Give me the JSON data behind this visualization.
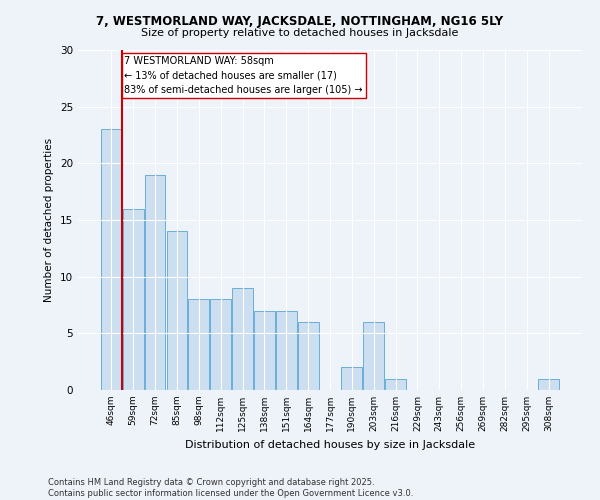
{
  "title1": "7, WESTMORLAND WAY, JACKSDALE, NOTTINGHAM, NG16 5LY",
  "title2": "Size of property relative to detached houses in Jacksdale",
  "xlabel": "Distribution of detached houses by size in Jacksdale",
  "ylabel": "Number of detached properties",
  "bar_labels": [
    "46sqm",
    "59sqm",
    "72sqm",
    "85sqm",
    "98sqm",
    "112sqm",
    "125sqm",
    "138sqm",
    "151sqm",
    "164sqm",
    "177sqm",
    "190sqm",
    "203sqm",
    "216sqm",
    "229sqm",
    "243sqm",
    "256sqm",
    "269sqm",
    "282sqm",
    "295sqm",
    "308sqm"
  ],
  "bar_values": [
    23,
    16,
    19,
    14,
    8,
    8,
    9,
    7,
    7,
    6,
    0,
    2,
    6,
    1,
    0,
    0,
    0,
    0,
    0,
    0,
    1
  ],
  "bar_color": "#ccdff0",
  "bar_edge_color": "#6aaed6",
  "annotation_title": "7 WESTMORLAND WAY: 58sqm",
  "annotation_line1": "← 13% of detached houses are smaller (17)",
  "annotation_line2": "83% of semi-detached houses are larger (105) →",
  "vline_color": "#cc0000",
  "annotation_box_edge_color": "#cc0000",
  "ylim": [
    0,
    30
  ],
  "yticks": [
    0,
    5,
    10,
    15,
    20,
    25,
    30
  ],
  "bg_color": "#eef2f9",
  "plot_bg_color": "#eef2f9",
  "footer1": "Contains HM Land Registry data © Crown copyright and database right 2025.",
  "footer2": "Contains public sector information licensed under the Open Government Licence v3.0."
}
